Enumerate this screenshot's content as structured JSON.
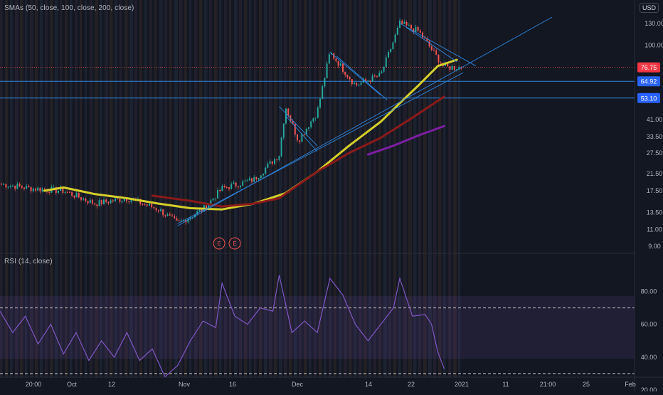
{
  "price_pane": {
    "legend": "SMAs (50, close, 100, close, 200, close)",
    "currency": "USD",
    "price_ticks": [
      "130.00",
      "100.00",
      "64.92",
      "53.10",
      "41.00",
      "33.50",
      "27.50",
      "21.50",
      "17.50",
      "13.50",
      "11.00",
      "9.00"
    ],
    "labels": [
      {
        "text": "76.75",
        "color": "#f23645"
      },
      {
        "text": "64.92",
        "color": "#2962ff"
      },
      {
        "text": "53.10",
        "color": "#2962ff"
      }
    ],
    "earnings_markers": [
      "E",
      "E"
    ]
  },
  "rsi_pane": {
    "legend": "RSI (14, close)",
    "ticks": [
      "80.00",
      "60.00",
      "40.00",
      "20.00"
    ]
  },
  "time_axis": [
    "20:00",
    "Oct",
    "12",
    "Nov",
    "16",
    "Dec",
    "14",
    "22",
    "2021",
    "11",
    "21:00",
    "25",
    "Feb"
  ],
  "colors": {
    "background": "#131722",
    "up": "#26a69a",
    "down": "#ef5350",
    "sma50": "#d4cf2b",
    "sma100": "#8b1a1a",
    "sma200": "#7b1fa2",
    "trend": "#2e86de",
    "rsi": "#7e57c2"
  },
  "chart_data": [
    {
      "type": "line",
      "title": "SMAs (50, close, 100, close, 200, close)",
      "scale": "log",
      "ylim": [
        9,
        150
      ],
      "series": [
        {
          "name": "SMA 50",
          "values": [
            [
              0.07,
              17.5
            ],
            [
              0.1,
              18.2
            ],
            [
              0.15,
              16.8
            ],
            [
              0.2,
              16.0
            ],
            [
              0.25,
              15.0
            ],
            [
              0.3,
              14.2
            ],
            [
              0.35,
              14.0
            ],
            [
              0.4,
              15.0
            ],
            [
              0.45,
              17.0
            ],
            [
              0.5,
              22.0
            ],
            [
              0.55,
              30.0
            ],
            [
              0.6,
              40.0
            ],
            [
              0.63,
              50.0
            ],
            [
              0.66,
              62.0
            ],
            [
              0.69,
              78.0
            ],
            [
              0.72,
              84.0
            ]
          ]
        },
        {
          "name": "SMA 100",
          "values": [
            [
              0.24,
              16.5
            ],
            [
              0.3,
              15.5
            ],
            [
              0.35,
              14.5
            ],
            [
              0.4,
              15.0
            ],
            [
              0.44,
              16.0
            ],
            [
              0.5,
              22.0
            ],
            [
              0.55,
              27.5
            ],
            [
              0.6,
              33.0
            ],
            [
              0.65,
              42.0
            ],
            [
              0.7,
              54.0
            ]
          ]
        },
        {
          "name": "SMA 200",
          "values": [
            [
              0.58,
              27.0
            ],
            [
              0.62,
              30.0
            ],
            [
              0.66,
              34.0
            ],
            [
              0.7,
              38.0
            ]
          ]
        }
      ]
    },
    {
      "type": "line",
      "title": "RSI (14, close)",
      "ylim": [
        20,
        95
      ],
      "series": [
        {
          "name": "RSI 14",
          "values": [
            [
              0.0,
              68
            ],
            [
              0.02,
              55
            ],
            [
              0.04,
              65
            ],
            [
              0.06,
              48
            ],
            [
              0.08,
              60
            ],
            [
              0.1,
              42
            ],
            [
              0.12,
              55
            ],
            [
              0.14,
              38
            ],
            [
              0.16,
              50
            ],
            [
              0.18,
              40
            ],
            [
              0.2,
              55
            ],
            [
              0.22,
              38
            ],
            [
              0.24,
              45
            ],
            [
              0.26,
              28
            ],
            [
              0.28,
              35
            ],
            [
              0.3,
              50
            ],
            [
              0.32,
              62
            ],
            [
              0.34,
              58
            ],
            [
              0.35,
              85
            ],
            [
              0.37,
              65
            ],
            [
              0.39,
              60
            ],
            [
              0.41,
              70
            ],
            [
              0.43,
              68
            ],
            [
              0.44,
              90
            ],
            [
              0.46,
              55
            ],
            [
              0.48,
              62
            ],
            [
              0.5,
              55
            ],
            [
              0.52,
              88
            ],
            [
              0.54,
              78
            ],
            [
              0.56,
              60
            ],
            [
              0.58,
              50
            ],
            [
              0.6,
              60
            ],
            [
              0.62,
              70
            ],
            [
              0.63,
              88
            ],
            [
              0.65,
              65
            ],
            [
              0.67,
              66
            ],
            [
              0.68,
              60
            ],
            [
              0.69,
              43
            ],
            [
              0.7,
              33
            ]
          ]
        }
      ]
    }
  ]
}
